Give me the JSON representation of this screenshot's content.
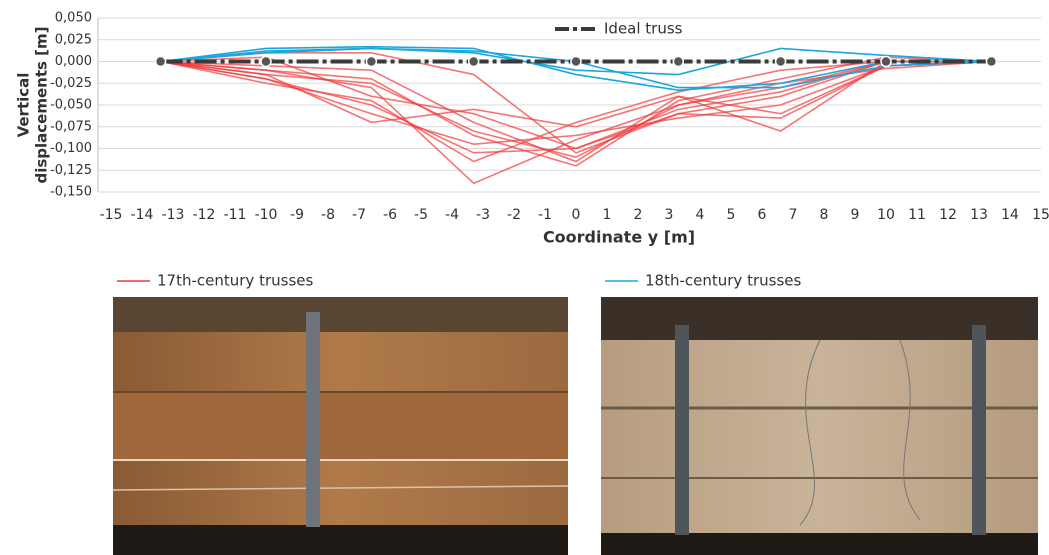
{
  "chart_data": {
    "type": "line",
    "xlabel": "Coordinate y [m]",
    "ylabel": [
      "Vertical",
      "displacements [m]"
    ],
    "x": [
      -13.4,
      -10,
      -6.6,
      -3.3,
      0,
      3.3,
      6.6,
      10,
      13.4
    ],
    "xlim": [
      -15,
      15
    ],
    "xticks": [
      -15,
      -14,
      -13,
      -12,
      -11,
      -10,
      -9,
      -8,
      -7,
      -6,
      -5,
      -4,
      -3,
      -2,
      -1,
      0,
      1,
      2,
      3,
      4,
      5,
      6,
      7,
      8,
      9,
      10,
      11,
      12,
      13,
      14,
      15
    ],
    "ylim": [
      -0.15,
      0.05
    ],
    "yticks": [
      {
        "value": 0.05,
        "label": "0,050"
      },
      {
        "value": 0.025,
        "label": "0,025"
      },
      {
        "value": 0,
        "label": "0,000"
      },
      {
        "value": -0.025,
        "label": "-0,025"
      },
      {
        "value": -0.05,
        "label": "-0,050"
      },
      {
        "value": -0.075,
        "label": "-0,075"
      },
      {
        "value": -0.1,
        "label": "-0,100"
      },
      {
        "value": -0.125,
        "label": "-0,125"
      },
      {
        "value": -0.15,
        "label": "-0,150"
      }
    ],
    "grid": true,
    "series": [
      {
        "name": "Ideal truss",
        "color": "#3a3a3a",
        "values": [
          0,
          0,
          0,
          0,
          0,
          0,
          0,
          0,
          0
        ]
      },
      {
        "name": "17th-century trusses",
        "color": "#f03a3c",
        "lines": [
          [
            0,
            -0.02,
            -0.05,
            -0.105,
            -0.1,
            -0.06,
            -0.04,
            0,
            0
          ],
          [
            0,
            -0.01,
            -0.03,
            -0.14,
            -0.09,
            -0.05,
            -0.03,
            0,
            0
          ],
          [
            0,
            -0.005,
            -0.01,
            -0.07,
            -0.115,
            -0.04,
            -0.06,
            -0.005,
            0
          ],
          [
            0,
            -0.015,
            -0.07,
            -0.055,
            -0.075,
            -0.04,
            -0.08,
            0,
            0
          ],
          [
            0,
            0.01,
            0.01,
            -0.015,
            -0.105,
            -0.06,
            -0.065,
            -0.005,
            0
          ],
          [
            0,
            -0.025,
            -0.045,
            -0.115,
            -0.07,
            -0.035,
            -0.01,
            0,
            0
          ],
          [
            0,
            -0.01,
            -0.02,
            -0.085,
            -0.12,
            -0.045,
            -0.02,
            0.005,
            0
          ],
          [
            0,
            -0.02,
            -0.06,
            -0.095,
            -0.085,
            -0.065,
            -0.05,
            -0.005,
            0
          ],
          [
            0,
            0.005,
            -0.04,
            -0.06,
            -0.1,
            -0.055,
            -0.035,
            0,
            0
          ],
          [
            0,
            -0.015,
            -0.025,
            -0.08,
            -0.11,
            -0.05,
            -0.025,
            -0.008,
            0
          ]
        ]
      },
      {
        "name": "18th-century trusses",
        "color": "#1aa7dd",
        "lines": [
          [
            0,
            0.015,
            0.017,
            0.015,
            -0.015,
            -0.033,
            -0.025,
            0,
            0
          ],
          [
            0,
            0.012,
            0.015,
            0.01,
            -0.01,
            -0.015,
            0.015,
            0.007,
            0
          ],
          [
            0,
            0.01,
            0.015,
            0.012,
            0,
            -0.03,
            -0.03,
            -0.005,
            0
          ]
        ]
      }
    ]
  }
}
